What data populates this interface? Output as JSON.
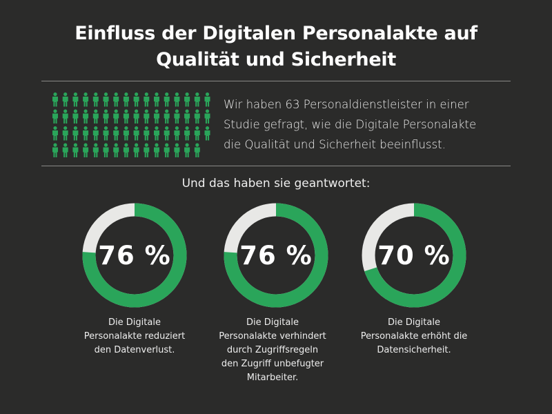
{
  "title_line1": "Einfluss der Digitalen Personalakte auf",
  "title_line2": "Qualität und Sicherheit",
  "intro": {
    "line1": "Wir haben 63 Personaldienstleister in einer",
    "line2": "Studie gefragt, wie die Digitale Personalakte",
    "line3": "die Qualität und Sicherheit beeinflusst."
  },
  "people_count": 63,
  "subtitle": "Und das haben sie geantwortet:",
  "colors": {
    "background": "#2b2b2a",
    "accent": "#2aa55a",
    "track": "#e8e8e6",
    "person": "#2aa55a"
  },
  "chart_data": {
    "type": "pie",
    "variant": "donut",
    "charts": [
      {
        "value": 76,
        "label": "76 %",
        "caption": [
          "Die Digitale",
          "Personalakte reduziert",
          "den Datenverlust."
        ]
      },
      {
        "value": 76,
        "label": "76 %",
        "caption": [
          "Die Digitale",
          "Personalakte verhindert",
          "durch Zugriffsregeln",
          "den Zugriff unbefugter",
          "Mitarbeiter."
        ]
      },
      {
        "value": 70,
        "label": "70 %",
        "caption": [
          "Die Digitale",
          "Personalakte erhöht die",
          "Datensicherheit."
        ]
      }
    ]
  }
}
